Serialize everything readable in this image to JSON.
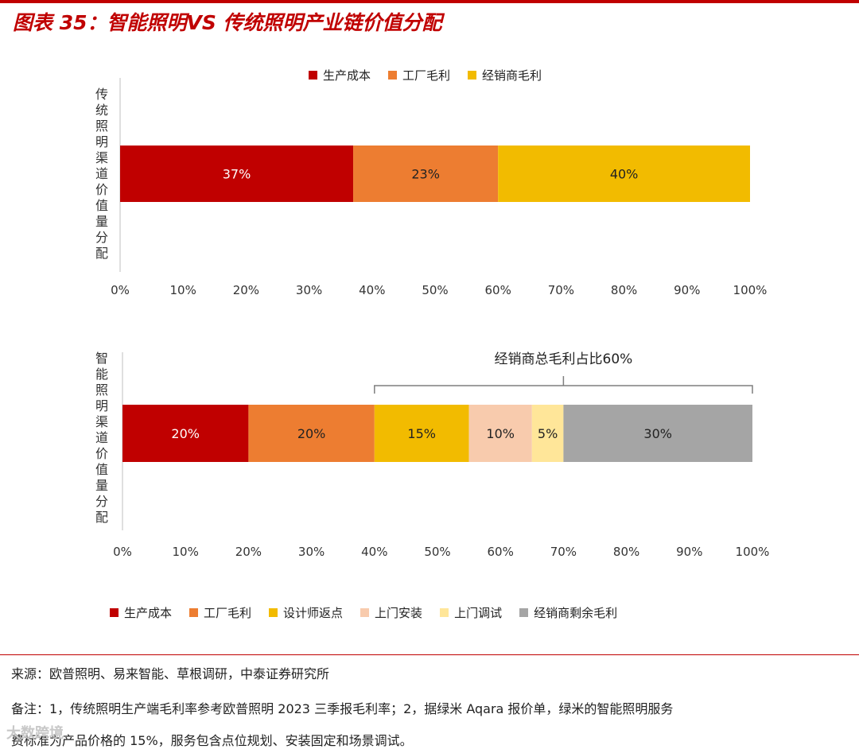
{
  "title": "图表 35：智能照明VS 传统照明产业链价值分配",
  "chart_data": [
    {
      "type": "bar",
      "orientation": "horizontal",
      "stacked": true,
      "ylabel": "传统照明渠道价值量分配",
      "xlim": [
        0,
        100
      ],
      "xticks": [
        "0%",
        "10%",
        "20%",
        "30%",
        "40%",
        "50%",
        "60%",
        "70%",
        "80%",
        "90%",
        "100%"
      ],
      "legend_position": "top",
      "series": [
        {
          "name": "生产成本",
          "values": [
            37
          ],
          "label": "37%",
          "color": "#c00000"
        },
        {
          "name": "工厂毛利",
          "values": [
            23
          ],
          "label": "23%",
          "color": "#ed7d31"
        },
        {
          "name": "经销商毛利",
          "values": [
            40
          ],
          "label": "40%",
          "color": "#f2bb00"
        }
      ]
    },
    {
      "type": "bar",
      "orientation": "horizontal",
      "stacked": true,
      "ylabel": "智能照明渠道价值量分配",
      "xlim": [
        0,
        100
      ],
      "xticks": [
        "0%",
        "10%",
        "20%",
        "30%",
        "40%",
        "50%",
        "60%",
        "70%",
        "80%",
        "90%",
        "100%"
      ],
      "legend_position": "bottom",
      "annotation": {
        "text": "经销商总毛利占比60%",
        "from": 40,
        "to": 100
      },
      "series": [
        {
          "name": "生产成本",
          "values": [
            20
          ],
          "label": "20%",
          "color": "#c00000"
        },
        {
          "name": "工厂毛利",
          "values": [
            20
          ],
          "label": "20%",
          "color": "#ed7d31"
        },
        {
          "name": "设计师返点",
          "values": [
            15
          ],
          "label": "15%",
          "color": "#f2bb00"
        },
        {
          "name": "上门安装",
          "values": [
            10
          ],
          "label": "10%",
          "color": "#f8cbad"
        },
        {
          "name": "上门调试",
          "values": [
            5
          ],
          "label": "5%",
          "color": "#ffe699"
        },
        {
          "name": "经销商剩余毛利",
          "values": [
            30
          ],
          "label": "30%",
          "color": "#a5a5a5"
        }
      ]
    }
  ],
  "footer": {
    "source": "来源：欧普照明、易来智能、草根调研，中泰证券研究所",
    "note_line1": "备注：1，传统照明生产端毛利率参考欧普照明 2023 三季报毛利率；2，据绿米 Aqara 报价单，绿米的智能照明服务",
    "note_line2": "费标准为产品价格的 15%，服务包含点位规划、安装固定和场景调试。"
  },
  "watermark": "大数跨境"
}
